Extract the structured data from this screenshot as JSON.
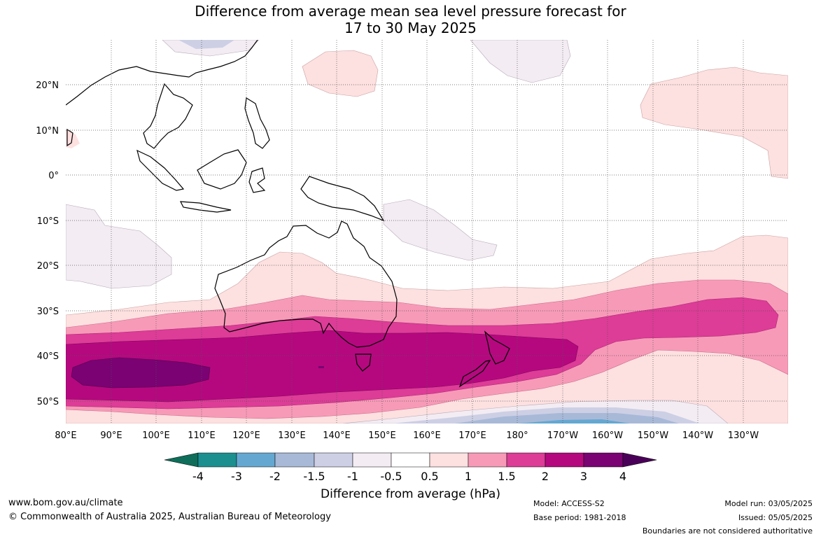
{
  "title": {
    "line1": "Difference from average mean sea level pressure forecast for",
    "line2": "17 to 30 May 2025"
  },
  "axes": {
    "lat_labels": [
      "20°N",
      "10°N",
      "0°",
      "10°S",
      "20°S",
      "30°S",
      "40°S",
      "50°S"
    ],
    "lon_labels": [
      "80°E",
      "90°E",
      "100°E",
      "110°E",
      "120°E",
      "130°E",
      "140°E",
      "150°E",
      "160°E",
      "170°E",
      "180°",
      "170°W",
      "160°W",
      "150°W",
      "140°W",
      "130°W"
    ],
    "lat_range": [
      -55,
      30
    ],
    "lon_range": [
      80,
      240
    ]
  },
  "colorbar": {
    "ticks": [
      "-4",
      "-3",
      "-2",
      "-1.5",
      "-1",
      "-0.5",
      "0.5",
      "1",
      "1.5",
      "2",
      "3",
      "4"
    ],
    "title": "Difference from average (hPa)",
    "colors": {
      "lt_-4": "#0e6e5a",
      "-4_-3": "#1b8f8f",
      "-3_-2": "#64a8d2",
      "-2_-1.5": "#a8b9d8",
      "-1.5_-1": "#cdcfe5",
      "-1_-0.5": "#f3ecf3",
      "-0.5_0.5": "#ffffff",
      "0.5_1": "#fde0e0",
      "1_1.5": "#f79ab8",
      "1.5_2": "#dd3c97",
      "2_3": "#b5087f",
      "3_4": "#7a0273",
      "gt_4": "#4a0058"
    }
  },
  "footer": {
    "website": "www.bom.gov.au/climate",
    "copyright": "© Commonwealth of Australia 2025, Australian Bureau of Meteorology",
    "model": "Model: ACCESS-S2",
    "base_period": "Base period: 1981-2018",
    "model_run": "Model run: 03/05/2025",
    "issued": "Issued: 05/05/2025",
    "disclaimer": "Boundaries are not considered authoritative"
  }
}
